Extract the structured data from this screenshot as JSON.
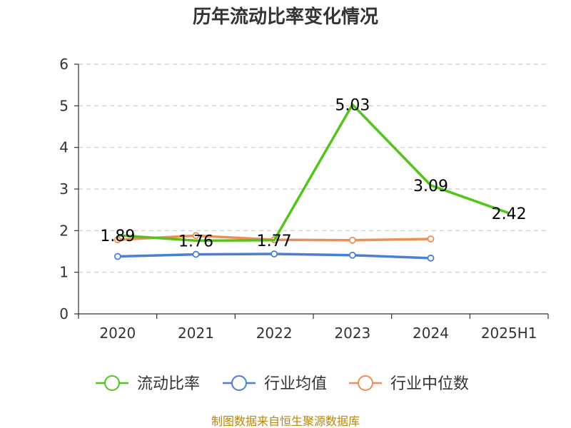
{
  "chart_data": {
    "type": "line",
    "title": "历年流动比率变化情况",
    "categories": [
      "2020",
      "2021",
      "2022",
      "2023",
      "2024",
      "2025H1"
    ],
    "ylim": [
      0,
      6
    ],
    "yticks": [
      "0",
      "1",
      "2",
      "3",
      "4",
      "5",
      "6"
    ],
    "grid": true,
    "legend_position": "bottom",
    "series": [
      {
        "name": "流动比率",
        "color": "#52c41a",
        "values": [
          1.89,
          1.76,
          1.77,
          5.03,
          3.09,
          2.42
        ],
        "labels": [
          "1.89",
          "1.76",
          "1.77",
          "5.03",
          "3.09",
          "2.42"
        ],
        "markers": false
      },
      {
        "name": "行业均值",
        "color": "#4a7fd6",
        "values": [
          1.38,
          1.43,
          1.44,
          1.41,
          1.34,
          null
        ],
        "markers": true
      },
      {
        "name": "行业中位数",
        "color": "#f28c55",
        "values": [
          1.78,
          1.88,
          1.78,
          1.77,
          1.8,
          null
        ],
        "markers": true
      }
    ]
  },
  "source": "制图数据来自恒生聚源数据库"
}
